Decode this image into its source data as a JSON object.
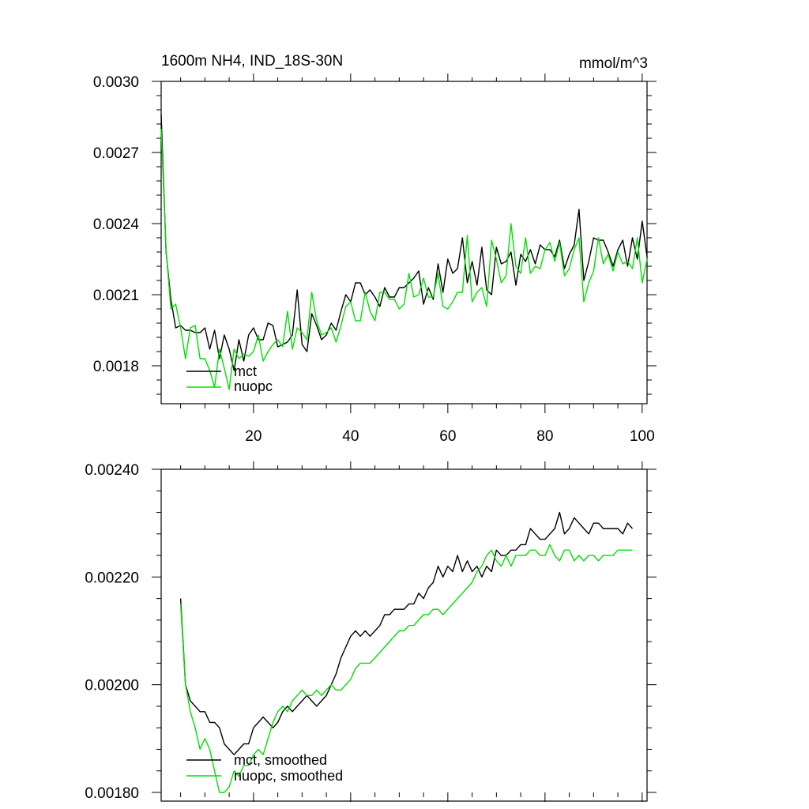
{
  "chart_data": [
    {
      "type": "line",
      "title_left": "1600m NH4, IND_18S-30N",
      "title_right": "mmol/m^3",
      "xlabel": "",
      "ylabel": "",
      "xlim": [
        1,
        101
      ],
      "ylim": [
        0.00164,
        0.003
      ],
      "x_ticks": [
        20,
        40,
        60,
        80,
        100
      ],
      "x_tick_labels": [
        "20",
        "40",
        "60",
        "80",
        "100"
      ],
      "y_ticks": [
        0.0018,
        0.0021,
        0.0024,
        0.0027,
        0.003
      ],
      "y_tick_labels": [
        "0.0018",
        "0.0021",
        "0.0024",
        "0.0027",
        "0.0030"
      ],
      "legend_position": "bottom-left",
      "series": [
        {
          "name": "mct",
          "color": "#000000",
          "x": [
            1,
            2,
            3,
            4,
            5,
            6,
            7,
            8,
            9,
            10,
            11,
            12,
            13,
            14,
            15,
            16,
            17,
            18,
            19,
            20,
            21,
            22,
            23,
            24,
            25,
            26,
            27,
            28,
            29,
            30,
            31,
            32,
            33,
            34,
            35,
            36,
            37,
            38,
            39,
            40,
            41,
            42,
            43,
            44,
            45,
            46,
            47,
            48,
            49,
            50,
            51,
            52,
            53,
            54,
            55,
            56,
            57,
            58,
            59,
            60,
            61,
            62,
            63,
            64,
            65,
            66,
            67,
            68,
            69,
            70,
            71,
            72,
            73,
            74,
            75,
            76,
            77,
            78,
            79,
            80,
            81,
            82,
            83,
            84,
            85,
            86,
            87,
            88,
            89,
            90,
            91,
            92,
            93,
            94,
            95,
            96,
            97,
            98,
            99,
            100,
            101
          ],
          "values": [
            0.00286,
            0.00228,
            0.00208,
            0.00196,
            0.00197,
            0.00195,
            0.00195,
            0.00194,
            0.00194,
            0.00196,
            0.00187,
            0.00195,
            0.00183,
            0.00193,
            0.00187,
            0.00178,
            0.00191,
            0.00182,
            0.00193,
            0.00196,
            0.00191,
            0.00191,
            0.00198,
            0.00197,
            0.00188,
            0.00189,
            0.0019,
            0.00193,
            0.00212,
            0.00189,
            0.00186,
            0.00202,
            0.00197,
            0.00191,
            0.00193,
            0.00198,
            0.00195,
            0.00203,
            0.0021,
            0.00207,
            0.00215,
            0.00215,
            0.0021,
            0.00212,
            0.00209,
            0.00205,
            0.00213,
            0.00209,
            0.00209,
            0.00213,
            0.00213,
            0.00215,
            0.00217,
            0.0022,
            0.00206,
            0.00213,
            0.00208,
            0.00223,
            0.00211,
            0.00225,
            0.00219,
            0.00221,
            0.00234,
            0.00215,
            0.00224,
            0.00214,
            0.0023,
            0.00212,
            0.0021,
            0.0023,
            0.00223,
            0.00224,
            0.00228,
            0.00214,
            0.00227,
            0.00224,
            0.00229,
            0.00223,
            0.00231,
            0.00229,
            0.00229,
            0.00226,
            0.00233,
            0.00221,
            0.00227,
            0.00231,
            0.00246,
            0.00216,
            0.00224,
            0.00234,
            0.00233,
            0.00233,
            0.00228,
            0.00222,
            0.00229,
            0.00233,
            0.00222,
            0.00234,
            0.00225,
            0.00241,
            0.00226
          ]
        },
        {
          "name": "nuopc",
          "color": "#00e000",
          "x": [
            1,
            2,
            3,
            4,
            5,
            6,
            7,
            8,
            9,
            10,
            11,
            12,
            13,
            14,
            15,
            16,
            17,
            18,
            19,
            20,
            21,
            22,
            23,
            24,
            25,
            26,
            27,
            28,
            29,
            30,
            31,
            32,
            33,
            34,
            35,
            36,
            37,
            38,
            39,
            40,
            41,
            42,
            43,
            44,
            45,
            46,
            47,
            48,
            49,
            50,
            51,
            52,
            53,
            54,
            55,
            56,
            57,
            58,
            59,
            60,
            61,
            62,
            63,
            64,
            65,
            66,
            67,
            68,
            69,
            70,
            71,
            72,
            73,
            74,
            75,
            76,
            77,
            78,
            79,
            80,
            81,
            82,
            83,
            84,
            85,
            86,
            87,
            88,
            89,
            90,
            91,
            92,
            93,
            94,
            95,
            96,
            97,
            98,
            99,
            100,
            101
          ],
          "values": [
            0.0028,
            0.00229,
            0.00204,
            0.00206,
            0.00196,
            0.00183,
            0.00196,
            0.00197,
            0.00183,
            0.00183,
            0.00178,
            0.00171,
            0.00187,
            0.00179,
            0.0017,
            0.00187,
            0.00183,
            0.00185,
            0.00184,
            0.00186,
            0.00193,
            0.00182,
            0.00186,
            0.00189,
            0.00191,
            0.00188,
            0.00203,
            0.00187,
            0.00196,
            0.00194,
            0.00191,
            0.00211,
            0.00199,
            0.00193,
            0.00194,
            0.00196,
            0.0019,
            0.00197,
            0.00205,
            0.00207,
            0.00199,
            0.00199,
            0.00211,
            0.00203,
            0.00199,
            0.00211,
            0.00211,
            0.00208,
            0.00208,
            0.00204,
            0.00206,
            0.00219,
            0.00209,
            0.0021,
            0.00217,
            0.00209,
            0.00209,
            0.00219,
            0.00205,
            0.00204,
            0.00207,
            0.00211,
            0.00211,
            0.00235,
            0.00207,
            0.00211,
            0.00213,
            0.00205,
            0.00233,
            0.00225,
            0.00215,
            0.00218,
            0.0024,
            0.00222,
            0.00219,
            0.00234,
            0.00219,
            0.00222,
            0.00221,
            0.00229,
            0.00232,
            0.00224,
            0.00232,
            0.00218,
            0.00221,
            0.00229,
            0.00234,
            0.00207,
            0.00215,
            0.0022,
            0.00234,
            0.00223,
            0.00227,
            0.0022,
            0.00228,
            0.00223,
            0.00224,
            0.00221,
            0.00234,
            0.00215,
            0.00225
          ]
        }
      ]
    },
    {
      "type": "line",
      "xlabel": "",
      "ylabel": "",
      "xlim": [
        1,
        101
      ],
      "ylim": [
        0.0018,
        0.0024
      ],
      "x_ticks": [
        20,
        40,
        60,
        80,
        100
      ],
      "y_ticks": [
        0.0018,
        0.002,
        0.0022,
        0.0024
      ],
      "y_tick_labels": [
        "0.00180",
        "0.00200",
        "0.00220",
        "0.00240"
      ],
      "legend_position": "bottom-left",
      "series": [
        {
          "name": "mct, smoothed",
          "color": "#000000",
          "x": [
            5,
            6,
            7,
            8,
            9,
            10,
            11,
            12,
            13,
            14,
            15,
            16,
            17,
            18,
            19,
            20,
            21,
            22,
            23,
            24,
            25,
            26,
            27,
            28,
            29,
            30,
            31,
            32,
            33,
            34,
            35,
            36,
            37,
            38,
            39,
            40,
            41,
            42,
            43,
            44,
            45,
            46,
            47,
            48,
            49,
            50,
            51,
            52,
            53,
            54,
            55,
            56,
            57,
            58,
            59,
            60,
            61,
            62,
            63,
            64,
            65,
            66,
            67,
            68,
            69,
            70,
            71,
            72,
            73,
            74,
            75,
            76,
            77,
            78,
            79,
            80,
            81,
            82,
            83,
            84,
            85,
            86,
            87,
            88,
            89,
            90,
            91,
            92,
            93,
            94,
            95,
            96,
            97,
            98
          ],
          "values": [
            0.00216,
            0.002,
            0.00197,
            0.00196,
            0.00195,
            0.00195,
            0.00193,
            0.00193,
            0.00192,
            0.00189,
            0.00188,
            0.00187,
            0.00188,
            0.00189,
            0.00189,
            0.00192,
            0.00193,
            0.00194,
            0.00193,
            0.00192,
            0.00193,
            0.00195,
            0.00196,
            0.00195,
            0.00196,
            0.00197,
            0.00198,
            0.00197,
            0.00196,
            0.00197,
            0.00198,
            0.002,
            0.00202,
            0.00205,
            0.00207,
            0.00209,
            0.0021,
            0.00209,
            0.0021,
            0.00209,
            0.0021,
            0.00211,
            0.00213,
            0.00213,
            0.00214,
            0.00214,
            0.00214,
            0.00215,
            0.00215,
            0.00217,
            0.00216,
            0.00218,
            0.00219,
            0.00222,
            0.0022,
            0.00222,
            0.00221,
            0.00224,
            0.00221,
            0.00223,
            0.00221,
            0.00222,
            0.0022,
            0.00222,
            0.00221,
            0.00225,
            0.00224,
            0.00224,
            0.00225,
            0.00225,
            0.00226,
            0.00226,
            0.00229,
            0.00228,
            0.00227,
            0.00227,
            0.00228,
            0.00229,
            0.00232,
            0.00228,
            0.00229,
            0.00231,
            0.0023,
            0.00229,
            0.00228,
            0.0023,
            0.0023,
            0.00229,
            0.00229,
            0.00229,
            0.00229,
            0.00228,
            0.0023,
            0.00229
          ]
        },
        {
          "name": "nuopc, smoothed",
          "color": "#00e000",
          "x": [
            5,
            6,
            7,
            8,
            9,
            10,
            11,
            12,
            13,
            14,
            15,
            16,
            17,
            18,
            19,
            20,
            21,
            22,
            23,
            24,
            25,
            26,
            27,
            28,
            29,
            30,
            31,
            32,
            33,
            34,
            35,
            36,
            37,
            38,
            39,
            40,
            41,
            42,
            43,
            44,
            45,
            46,
            47,
            48,
            49,
            50,
            51,
            52,
            53,
            54,
            55,
            56,
            57,
            58,
            59,
            60,
            61,
            62,
            63,
            64,
            65,
            66,
            67,
            68,
            69,
            70,
            71,
            72,
            73,
            74,
            75,
            76,
            77,
            78,
            79,
            80,
            81,
            82,
            83,
            84,
            85,
            86,
            87,
            88,
            89,
            90,
            91,
            92,
            93,
            94,
            95,
            96,
            97,
            98
          ],
          "values": [
            0.00215,
            0.002,
            0.00195,
            0.00192,
            0.00188,
            0.0019,
            0.00188,
            0.00184,
            0.0018,
            0.0018,
            0.00181,
            0.00184,
            0.00183,
            0.00185,
            0.00185,
            0.00187,
            0.00188,
            0.00187,
            0.0019,
            0.00193,
            0.00195,
            0.00196,
            0.00195,
            0.00197,
            0.00198,
            0.00199,
            0.00198,
            0.00198,
            0.00199,
            0.00198,
            0.00199,
            0.002,
            0.00199,
            0.00199,
            0.002,
            0.00201,
            0.00203,
            0.00204,
            0.00204,
            0.00204,
            0.00205,
            0.00206,
            0.00207,
            0.00208,
            0.00209,
            0.0021,
            0.0021,
            0.00211,
            0.00211,
            0.00212,
            0.00213,
            0.00213,
            0.00214,
            0.00214,
            0.00213,
            0.00214,
            0.00215,
            0.00216,
            0.00217,
            0.00218,
            0.00219,
            0.00221,
            0.00222,
            0.00224,
            0.00225,
            0.00223,
            0.00222,
            0.00224,
            0.00222,
            0.00224,
            0.00224,
            0.00224,
            0.00225,
            0.00225,
            0.00224,
            0.00224,
            0.00226,
            0.00224,
            0.00223,
            0.00225,
            0.00225,
            0.00223,
            0.00224,
            0.00223,
            0.00224,
            0.00224,
            0.00223,
            0.00224,
            0.00224,
            0.00224,
            0.00225,
            0.00225,
            0.00225,
            0.00225
          ]
        }
      ]
    }
  ]
}
